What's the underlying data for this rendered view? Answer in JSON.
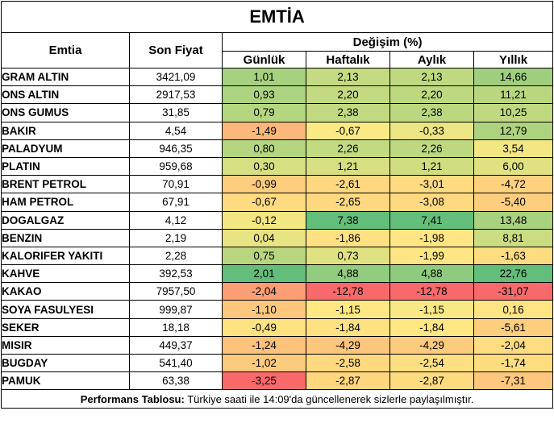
{
  "title": "EMTİA",
  "headers": {
    "commodity": "Emtia",
    "last_price": "Son Fiyat",
    "change_group": "Değişim (%)",
    "daily": "Günlük",
    "weekly": "Haftalık",
    "monthly": "Aylık",
    "yearly": "Yıllık"
  },
  "rows": [
    {
      "name": "GRAM ALTIN",
      "price": "3421,09",
      "d": "1,01",
      "w": "2,13",
      "m": "2,13",
      "y": "14,66"
    },
    {
      "name": "ONS ALTIN",
      "price": "2917,53",
      "d": "0,93",
      "w": "2,20",
      "m": "2,20",
      "y": "11,21"
    },
    {
      "name": "ONS GUMUS",
      "price": "31,85",
      "d": "0,79",
      "w": "2,38",
      "m": "2,38",
      "y": "10,25"
    },
    {
      "name": "BAKIR",
      "price": "4,54",
      "d": "-1,49",
      "w": "-0,67",
      "m": "-0,33",
      "y": "12,79"
    },
    {
      "name": "PALADYUM",
      "price": "946,35",
      "d": "0,80",
      "w": "2,26",
      "m": "2,26",
      "y": "3,54"
    },
    {
      "name": "PLATIN",
      "price": "959,68",
      "d": "0,30",
      "w": "1,21",
      "m": "1,21",
      "y": "6,00"
    },
    {
      "name": "BRENT PETROL",
      "price": "70,91",
      "d": "-0,99",
      "w": "-2,61",
      "m": "-3,01",
      "y": "-4,72"
    },
    {
      "name": "HAM PETROL",
      "price": "67,91",
      "d": "-0,67",
      "w": "-2,65",
      "m": "-3,08",
      "y": "-5,40"
    },
    {
      "name": "DOGALGAZ",
      "price": "4,12",
      "d": "-0,12",
      "w": "7,38",
      "m": "7,41",
      "y": "13,48"
    },
    {
      "name": "BENZIN",
      "price": "2,19",
      "d": "0,04",
      "w": "-1,86",
      "m": "-1,98",
      "y": "8,81"
    },
    {
      "name": "KALORIFER YAKITI",
      "price": "2,28",
      "d": "0,75",
      "w": "0,73",
      "m": "-1,99",
      "y": "-1,63"
    },
    {
      "name": "KAHVE",
      "price": "392,53",
      "d": "2,01",
      "w": "4,88",
      "m": "4,88",
      "y": "22,76"
    },
    {
      "name": "KAKAO",
      "price": "7957,50",
      "d": "-2,04",
      "w": "-12,78",
      "m": "-12,78",
      "y": "-31,07"
    },
    {
      "name": "SOYA FASULYESI",
      "price": "999,87",
      "d": "-1,10",
      "w": "-1,15",
      "m": "-1,15",
      "y": "0,16"
    },
    {
      "name": "SEKER",
      "price": "18,18",
      "d": "-0,49",
      "w": "-1,84",
      "m": "-1,84",
      "y": "-5,61"
    },
    {
      "name": "MISIR",
      "price": "449,37",
      "d": "-1,24",
      "w": "-4,29",
      "m": "-4,29",
      "y": "-2,04"
    },
    {
      "name": "BUGDAY",
      "price": "541,40",
      "d": "-1,02",
      "w": "-2,58",
      "m": "-2,54",
      "y": "-1,74"
    },
    {
      "name": "PAMUK",
      "price": "63,38",
      "d": "-3,25",
      "w": "-2,87",
      "m": "-2,87",
      "y": "-7,31"
    }
  ],
  "footer": {
    "label": "Performans Tablosu:",
    "text": " Türkiye saati ile 14:09'da güncellenerek sizlerle paylaşılmıştır."
  }
}
